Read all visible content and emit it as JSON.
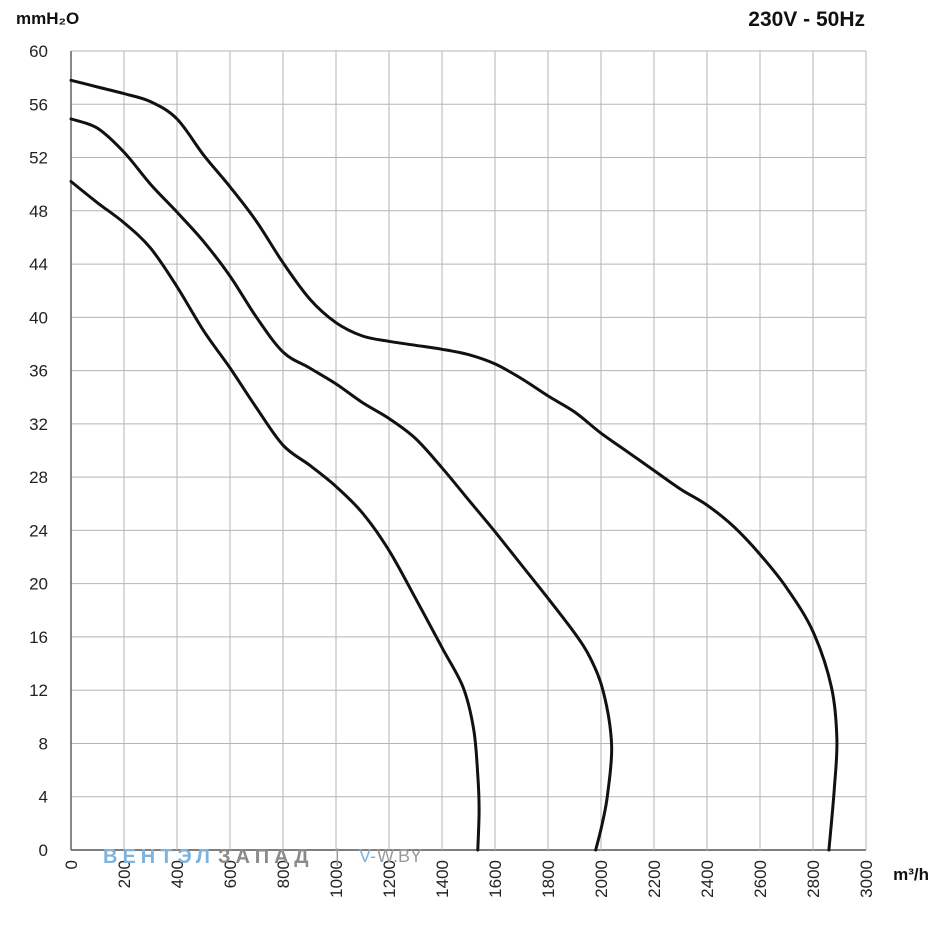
{
  "chart_data": {
    "type": "line",
    "title": "230V - 50Hz",
    "ylabel": "mmH₂O",
    "xlabel": "m³/h",
    "xlim": [
      0,
      3000
    ],
    "ylim": [
      0,
      60
    ],
    "grid": true,
    "x_ticks": [
      0,
      200,
      400,
      600,
      800,
      1000,
      1200,
      1400,
      1600,
      1800,
      2000,
      2200,
      2400,
      2600,
      2800,
      3000
    ],
    "y_ticks": [
      0,
      4,
      8,
      12,
      16,
      20,
      24,
      28,
      32,
      36,
      40,
      44,
      48,
      52,
      56,
      60
    ],
    "series": [
      {
        "values": [
          [
            0,
            50.2
          ],
          [
            100,
            48.6
          ],
          [
            200,
            47.1
          ],
          [
            300,
            45.2
          ],
          [
            400,
            42.3
          ],
          [
            500,
            39.0
          ],
          [
            600,
            36.2
          ],
          [
            700,
            33.2
          ],
          [
            800,
            30.4
          ],
          [
            900,
            28.9
          ],
          [
            1000,
            27.3
          ],
          [
            1100,
            25.3
          ],
          [
            1200,
            22.5
          ],
          [
            1300,
            18.9
          ],
          [
            1400,
            15.2
          ],
          [
            1480,
            12.2
          ],
          [
            1520,
            9.0
          ],
          [
            1535,
            5.6
          ],
          [
            1540,
            3.0
          ],
          [
            1535,
            0
          ]
        ]
      },
      {
        "values": [
          [
            0,
            54.9
          ],
          [
            100,
            54.2
          ],
          [
            200,
            52.4
          ],
          [
            300,
            50.0
          ],
          [
            400,
            47.9
          ],
          [
            500,
            45.7
          ],
          [
            600,
            43.1
          ],
          [
            700,
            40.0
          ],
          [
            800,
            37.4
          ],
          [
            900,
            36.2
          ],
          [
            1000,
            35.0
          ],
          [
            1100,
            33.6
          ],
          [
            1200,
            32.4
          ],
          [
            1300,
            30.9
          ],
          [
            1400,
            28.7
          ],
          [
            1500,
            26.3
          ],
          [
            1600,
            23.9
          ],
          [
            1700,
            21.4
          ],
          [
            1800,
            18.9
          ],
          [
            1900,
            16.3
          ],
          [
            1960,
            14.4
          ],
          [
            2010,
            11.8
          ],
          [
            2040,
            7.9
          ],
          [
            2025,
            4.2
          ],
          [
            2005,
            2.0
          ],
          [
            1980,
            0
          ]
        ]
      },
      {
        "values": [
          [
            0,
            57.8
          ],
          [
            100,
            57.3
          ],
          [
            200,
            56.8
          ],
          [
            300,
            56.2
          ],
          [
            400,
            54.9
          ],
          [
            500,
            52.2
          ],
          [
            600,
            49.8
          ],
          [
            700,
            47.2
          ],
          [
            800,
            44.1
          ],
          [
            900,
            41.4
          ],
          [
            1000,
            39.6
          ],
          [
            1100,
            38.6
          ],
          [
            1200,
            38.2
          ],
          [
            1300,
            37.9
          ],
          [
            1400,
            37.6
          ],
          [
            1500,
            37.2
          ],
          [
            1600,
            36.5
          ],
          [
            1700,
            35.4
          ],
          [
            1800,
            34.1
          ],
          [
            1900,
            32.9
          ],
          [
            2000,
            31.3
          ],
          [
            2100,
            29.9
          ],
          [
            2200,
            28.5
          ],
          [
            2300,
            27.1
          ],
          [
            2400,
            25.9
          ],
          [
            2500,
            24.3
          ],
          [
            2600,
            22.2
          ],
          [
            2700,
            19.7
          ],
          [
            2800,
            16.4
          ],
          [
            2870,
            12.2
          ],
          [
            2890,
            8.3
          ],
          [
            2880,
            4.5
          ],
          [
            2860,
            0
          ]
        ]
      }
    ],
    "line_color": "#111111",
    "grid_color": "#b5b5b5"
  },
  "watermark": {
    "part1": "ВЕНТЭЛ",
    "part2": "ЗАПАД",
    "separator": "|",
    "part3": "V-",
    "part4": "W.BY"
  }
}
